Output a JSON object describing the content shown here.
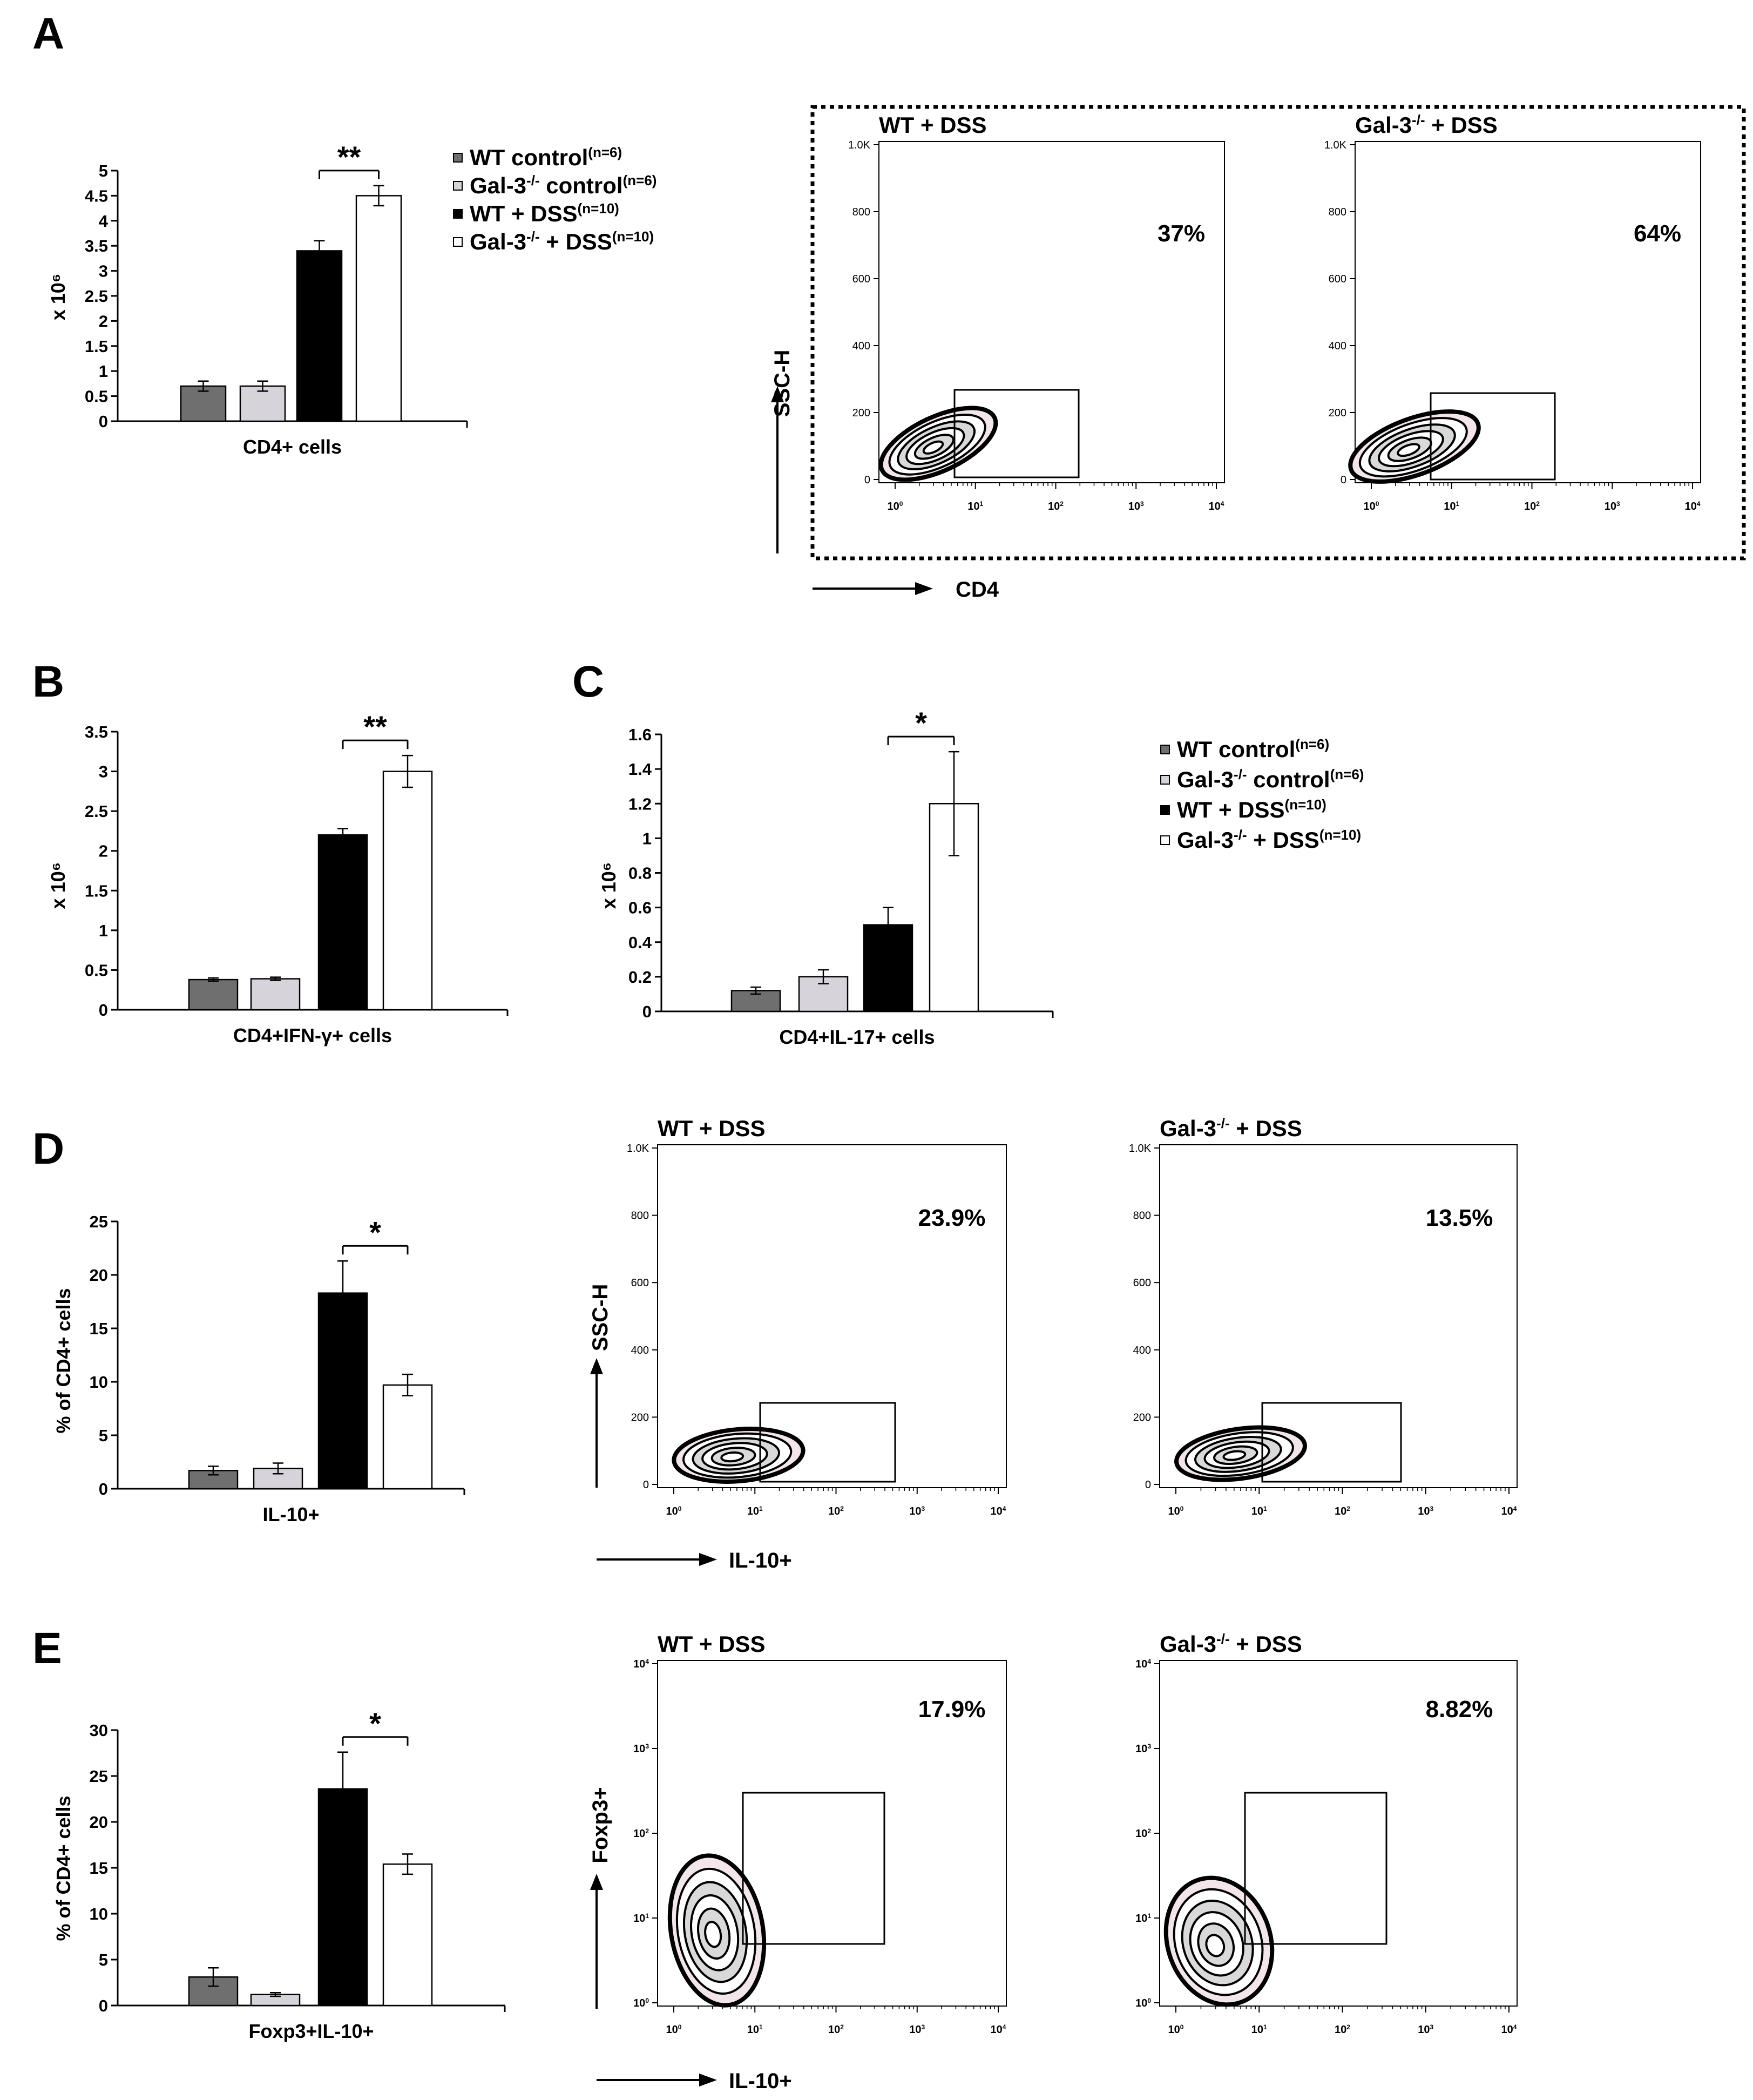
{
  "panel_labels": [
    "A",
    "B",
    "C",
    "D",
    "E"
  ],
  "legend": {
    "entries": [
      {
        "name": "WT control",
        "sup": "(n=6)",
        "sup2": "",
        "suffix": ""
      },
      {
        "name": "Gal-3",
        "sup": "-/-",
        "suffix": " control",
        "sup2": "(n=6)"
      },
      {
        "name": "WT + DSS",
        "sup": "(n=10)",
        "sup2": "",
        "suffix": ""
      },
      {
        "name": "Gal-3",
        "sup": "-/-",
        "suffix": " + DSS",
        "sup2": "(n=10)"
      }
    ],
    "colors": [
      "#6f6f6f",
      "#d6d4da",
      "#000000",
      "#ffffff"
    ]
  },
  "chart_data": [
    {
      "id": "A",
      "type": "bar",
      "categories": [
        "WT control",
        "Gal-3-/- control",
        "WT + DSS",
        "Gal-3-/- + DSS"
      ],
      "values": [
        0.7,
        0.7,
        3.4,
        4.5
      ],
      "errors": [
        0.1,
        0.1,
        0.2,
        0.2
      ],
      "xlabel": "CD4+ cells",
      "ylabel": "x 10⁶",
      "ylim": [
        0,
        5
      ],
      "yticks": [
        "0",
        "0.5",
        "1",
        "1.5",
        "2",
        "2.5",
        "3",
        "3.5",
        "4",
        "4.5",
        "5"
      ],
      "ytick_values": [
        0,
        0.5,
        1,
        1.5,
        2,
        2.5,
        3,
        3.5,
        4,
        4.5,
        5
      ],
      "significance": {
        "from": 2,
        "to": 3,
        "label": "**"
      }
    },
    {
      "id": "B",
      "type": "bar",
      "categories": [
        "WT control",
        "Gal-3-/- control",
        "WT + DSS",
        "Gal-3-/- + DSS"
      ],
      "values": [
        0.38,
        0.39,
        2.2,
        3.0
      ],
      "errors": [
        0.02,
        0.02,
        0.08,
        0.2
      ],
      "xlabel": "CD4+IFN-γ+  cells",
      "ylabel": "x 10⁶",
      "ylim": [
        0,
        3.5
      ],
      "yticks": [
        "0",
        "0.5",
        "1",
        "1.5",
        "2",
        "2.5",
        "3",
        "3.5"
      ],
      "ytick_values": [
        0,
        0.5,
        1,
        1.5,
        2,
        2.5,
        3,
        3.5
      ],
      "significance": {
        "from": 2,
        "to": 3,
        "label": "**"
      }
    },
    {
      "id": "C",
      "type": "bar",
      "categories": [
        "WT control",
        "Gal-3-/- control",
        "WT + DSS",
        "Gal-3-/- + DSS"
      ],
      "values": [
        0.12,
        0.2,
        0.5,
        1.2
      ],
      "errors": [
        0.02,
        0.04,
        0.1,
        0.3
      ],
      "xlabel": "CD4+IL-17+ cells",
      "ylabel": "x 10⁶",
      "ylim": [
        0,
        1.6
      ],
      "yticks": [
        "0",
        "0.2",
        "0.4",
        "0.6",
        "0.8",
        "1",
        "1.2",
        "1.4",
        "1.6"
      ],
      "ytick_values": [
        0,
        0.2,
        0.4,
        0.6,
        0.8,
        1,
        1.2,
        1.4,
        1.6
      ],
      "significance": {
        "from": 2,
        "to": 3,
        "label": "*"
      }
    },
    {
      "id": "D",
      "type": "bar",
      "categories": [
        "WT control",
        "Gal-3-/- control",
        "WT + DSS",
        "Gal-3-/- + DSS"
      ],
      "values": [
        1.7,
        1.9,
        18.3,
        9.7
      ],
      "errors": [
        0.4,
        0.5,
        3.0,
        1.0
      ],
      "xlabel": "IL-10+",
      "ylabel": "% of CD4+ cells",
      "ylim": [
        0,
        25
      ],
      "yticks": [
        "0",
        "5",
        "10",
        "15",
        "20",
        "25"
      ],
      "ytick_values": [
        0,
        5,
        10,
        15,
        20,
        25
      ],
      "significance": {
        "from": 2,
        "to": 3,
        "label": "*"
      }
    },
    {
      "id": "E",
      "type": "bar",
      "categories": [
        "WT control",
        "Gal-3-/- control",
        "WT + DSS",
        "Gal-3-/- + DSS"
      ],
      "values": [
        3.1,
        1.2,
        23.6,
        15.4
      ],
      "errors": [
        1.0,
        0.2,
        4.0,
        1.1
      ],
      "xlabel": "Foxp3+IL-10+",
      "ylabel": "% of CD4+ cells",
      "ylim": [
        0,
        30
      ],
      "yticks": [
        "0",
        "5",
        "10",
        "15",
        "20",
        "25",
        "30"
      ],
      "ytick_values": [
        0,
        5,
        10,
        15,
        20,
        25,
        30
      ],
      "significance": {
        "from": 2,
        "to": 3,
        "label": "*"
      }
    }
  ],
  "flow_plots": {
    "A": {
      "y_axis_label": "SSC-H",
      "x_axis_label": "CD4",
      "yticks": [
        "0",
        "200",
        "400",
        "600",
        "800",
        "1.0K"
      ],
      "xticks": [
        "10",
        "10",
        "10",
        "10",
        "10"
      ],
      "xtick_exps": [
        "0",
        "1",
        "2",
        "3",
        "4"
      ],
      "plots": [
        {
          "title_main": "WT + DSS",
          "title_sup": "",
          "title_rest": "",
          "percent": "37%"
        },
        {
          "title_main": "Gal-3",
          "title_sup": "-/-",
          "title_rest": " + DSS",
          "percent": "64%"
        }
      ]
    },
    "D": {
      "y_axis_label": "SSC-H",
      "x_axis_label": "IL-10+",
      "yticks": [
        "0",
        "200",
        "400",
        "600",
        "800",
        "1.0K"
      ],
      "xticks": [
        "10",
        "10",
        "10",
        "10",
        "10"
      ],
      "xtick_exps": [
        "0",
        "1",
        "2",
        "3",
        "4"
      ],
      "plots": [
        {
          "title_main": "WT + DSS",
          "title_sup": "",
          "title_rest": "",
          "percent": "23.9%"
        },
        {
          "title_main": "Gal-3",
          "title_sup": "-/-",
          "title_rest": " + DSS",
          "percent": "13.5%"
        }
      ]
    },
    "E": {
      "y_axis_label": "Foxp3+",
      "x_axis_label": "IL-10+",
      "yticks": [
        "10",
        "10",
        "10",
        "10",
        "10"
      ],
      "ytick_exps": [
        "0",
        "1",
        "2",
        "3",
        "4"
      ],
      "xticks": [
        "10",
        "10",
        "10",
        "10",
        "10"
      ],
      "xtick_exps": [
        "0",
        "1",
        "2",
        "3",
        "4"
      ],
      "plots": [
        {
          "title_main": "WT + DSS",
          "title_sup": "",
          "title_rest": "",
          "percent": "17.9%"
        },
        {
          "title_main": "Gal-3",
          "title_sup": "-/-",
          "title_rest": " + DSS",
          "percent": "8.82%"
        }
      ]
    }
  }
}
